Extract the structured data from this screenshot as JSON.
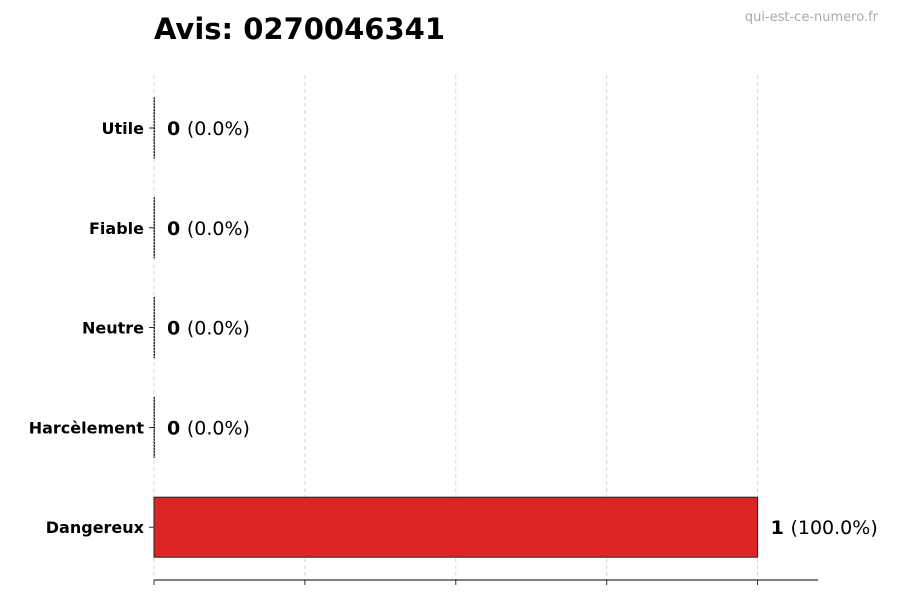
{
  "chart_data": {
    "type": "bar",
    "orientation": "horizontal",
    "title": "Avis: 0270046341",
    "watermark": "qui-est-ce-numero.fr",
    "categories": [
      "Utile",
      "Fiable",
      "Neutre",
      "Harcèlement",
      "Dangereux"
    ],
    "values": [
      0,
      0,
      0,
      0,
      1
    ],
    "value_labels": [
      "(0.0%)",
      "(0.0%)",
      "(0.0%)",
      "(0.0%)",
      "(100.0%)"
    ],
    "colors": [
      "#22c55e",
      "#3b82f6",
      "#9ca3af",
      "#f97316",
      "#dc2626"
    ],
    "xlim": [
      0,
      1.1
    ],
    "xticks": [
      0,
      0.25,
      0.5,
      0.75,
      1
    ],
    "xtick_labels_shown": false,
    "grid": "x dashed",
    "xlabel": "",
    "ylabel": ""
  }
}
